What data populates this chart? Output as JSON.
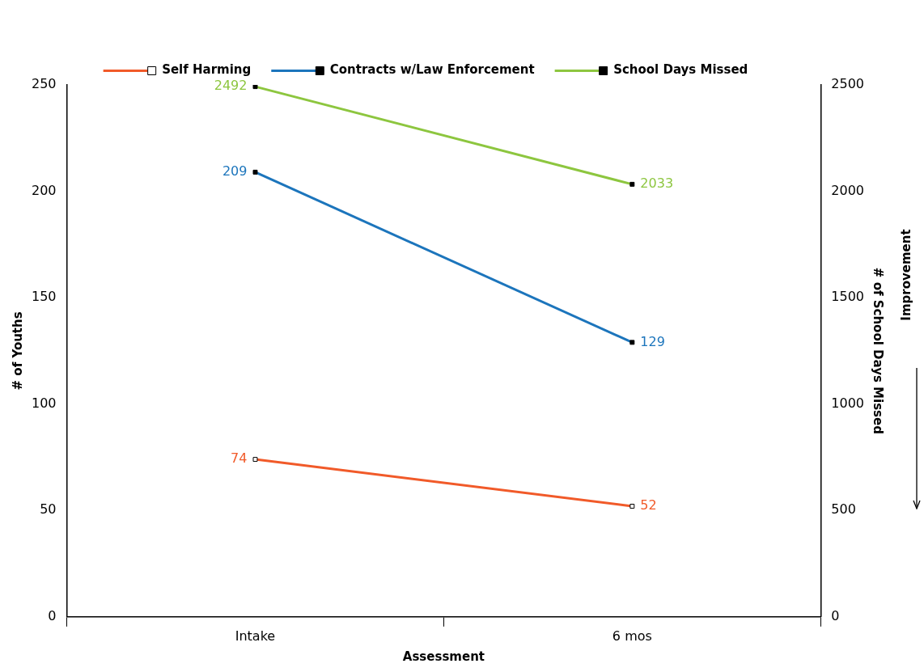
{
  "chart_data": {
    "type": "line",
    "xlabel": "Assessment",
    "ylabel": "# of Youths",
    "y2label": "# of School Days Missed",
    "categories": [
      "Intake",
      "6 mos"
    ],
    "series": [
      {
        "name": "Self Harming",
        "color": "#f15a29",
        "values": [
          74,
          52
        ]
      },
      {
        "name": "Contracts w/Law Enforcement",
        "color": "#1c75bc",
        "values": [
          209,
          129
        ]
      },
      {
        "name": "School Days Missed",
        "color": "#8dc63f",
        "values": [
          2492,
          2033
        ],
        "axis": "y2"
      }
    ],
    "ylim": [
      0,
      250
    ],
    "yticks": [
      0,
      50,
      100,
      150,
      200,
      250
    ],
    "y2lim": [
      0,
      2500
    ],
    "y2ticks": [
      0,
      500,
      1000,
      1500,
      2000,
      2500
    ],
    "grid": false,
    "legend": "top",
    "marker": "square",
    "line_style": "solid",
    "data_labels": true,
    "annotations": [
      "Improvement"
    ]
  }
}
